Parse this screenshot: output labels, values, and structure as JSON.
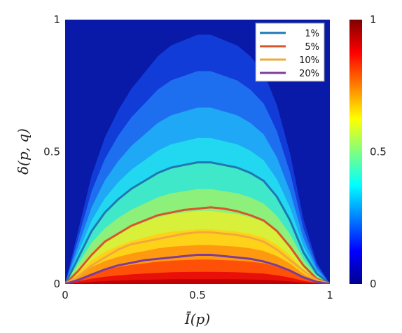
{
  "chart_data": {
    "type": "heatmap",
    "title": "",
    "xlabel": "Ī(p)",
    "ylabel": "δ(p, q)",
    "xlim": [
      0,
      1
    ],
    "ylim": [
      0,
      1
    ],
    "x_ticks": [
      "0",
      "0.5",
      "1"
    ],
    "y_ticks": [
      "0",
      "0.5",
      "1"
    ],
    "colorbar": {
      "range": [
        0,
        1
      ],
      "ticks": [
        "0",
        "0.5",
        "1"
      ],
      "colormap": "jet"
    },
    "legend": {
      "position": "top-right"
    },
    "series": [
      {
        "name": "1%",
        "color": "#1f78b4",
        "x": [
          0,
          0.05,
          0.1,
          0.15,
          0.2,
          0.25,
          0.3,
          0.35,
          0.4,
          0.45,
          0.5,
          0.55,
          0.6,
          0.65,
          0.7,
          0.75,
          0.8,
          0.85,
          0.9,
          0.95,
          1
        ],
        "y": [
          0,
          0.1,
          0.2,
          0.27,
          0.32,
          0.36,
          0.39,
          0.42,
          0.44,
          0.45,
          0.46,
          0.46,
          0.45,
          0.44,
          0.42,
          0.39,
          0.33,
          0.24,
          0.12,
          0.04,
          0
        ]
      },
      {
        "name": "5%",
        "color": "#d9552a",
        "x": [
          0,
          0.05,
          0.1,
          0.15,
          0.2,
          0.25,
          0.3,
          0.35,
          0.4,
          0.45,
          0.5,
          0.55,
          0.6,
          0.65,
          0.7,
          0.75,
          0.8,
          0.85,
          0.9,
          0.95,
          1
        ],
        "y": [
          0,
          0.05,
          0.11,
          0.16,
          0.19,
          0.22,
          0.24,
          0.26,
          0.27,
          0.28,
          0.285,
          0.29,
          0.285,
          0.275,
          0.26,
          0.24,
          0.2,
          0.14,
          0.07,
          0.02,
          0
        ]
      },
      {
        "name": "10%",
        "color": "#f0a93a",
        "x": [
          0,
          0.05,
          0.1,
          0.15,
          0.2,
          0.25,
          0.3,
          0.35,
          0.4,
          0.45,
          0.5,
          0.55,
          0.6,
          0.65,
          0.7,
          0.75,
          0.8,
          0.85,
          0.9,
          0.95,
          1
        ],
        "y": [
          0,
          0.03,
          0.07,
          0.1,
          0.13,
          0.15,
          0.16,
          0.17,
          0.18,
          0.19,
          0.195,
          0.195,
          0.19,
          0.185,
          0.175,
          0.16,
          0.13,
          0.09,
          0.05,
          0.015,
          0
        ]
      },
      {
        "name": "20%",
        "color": "#7d3c98",
        "x": [
          0,
          0.05,
          0.1,
          0.15,
          0.2,
          0.25,
          0.3,
          0.35,
          0.4,
          0.45,
          0.5,
          0.55,
          0.6,
          0.65,
          0.7,
          0.75,
          0.8,
          0.85,
          0.9,
          0.95,
          1
        ],
        "y": [
          0,
          0.015,
          0.035,
          0.055,
          0.07,
          0.08,
          0.09,
          0.095,
          0.1,
          0.105,
          0.11,
          0.11,
          0.105,
          0.1,
          0.095,
          0.085,
          0.07,
          0.05,
          0.025,
          0.008,
          0
        ]
      }
    ]
  }
}
